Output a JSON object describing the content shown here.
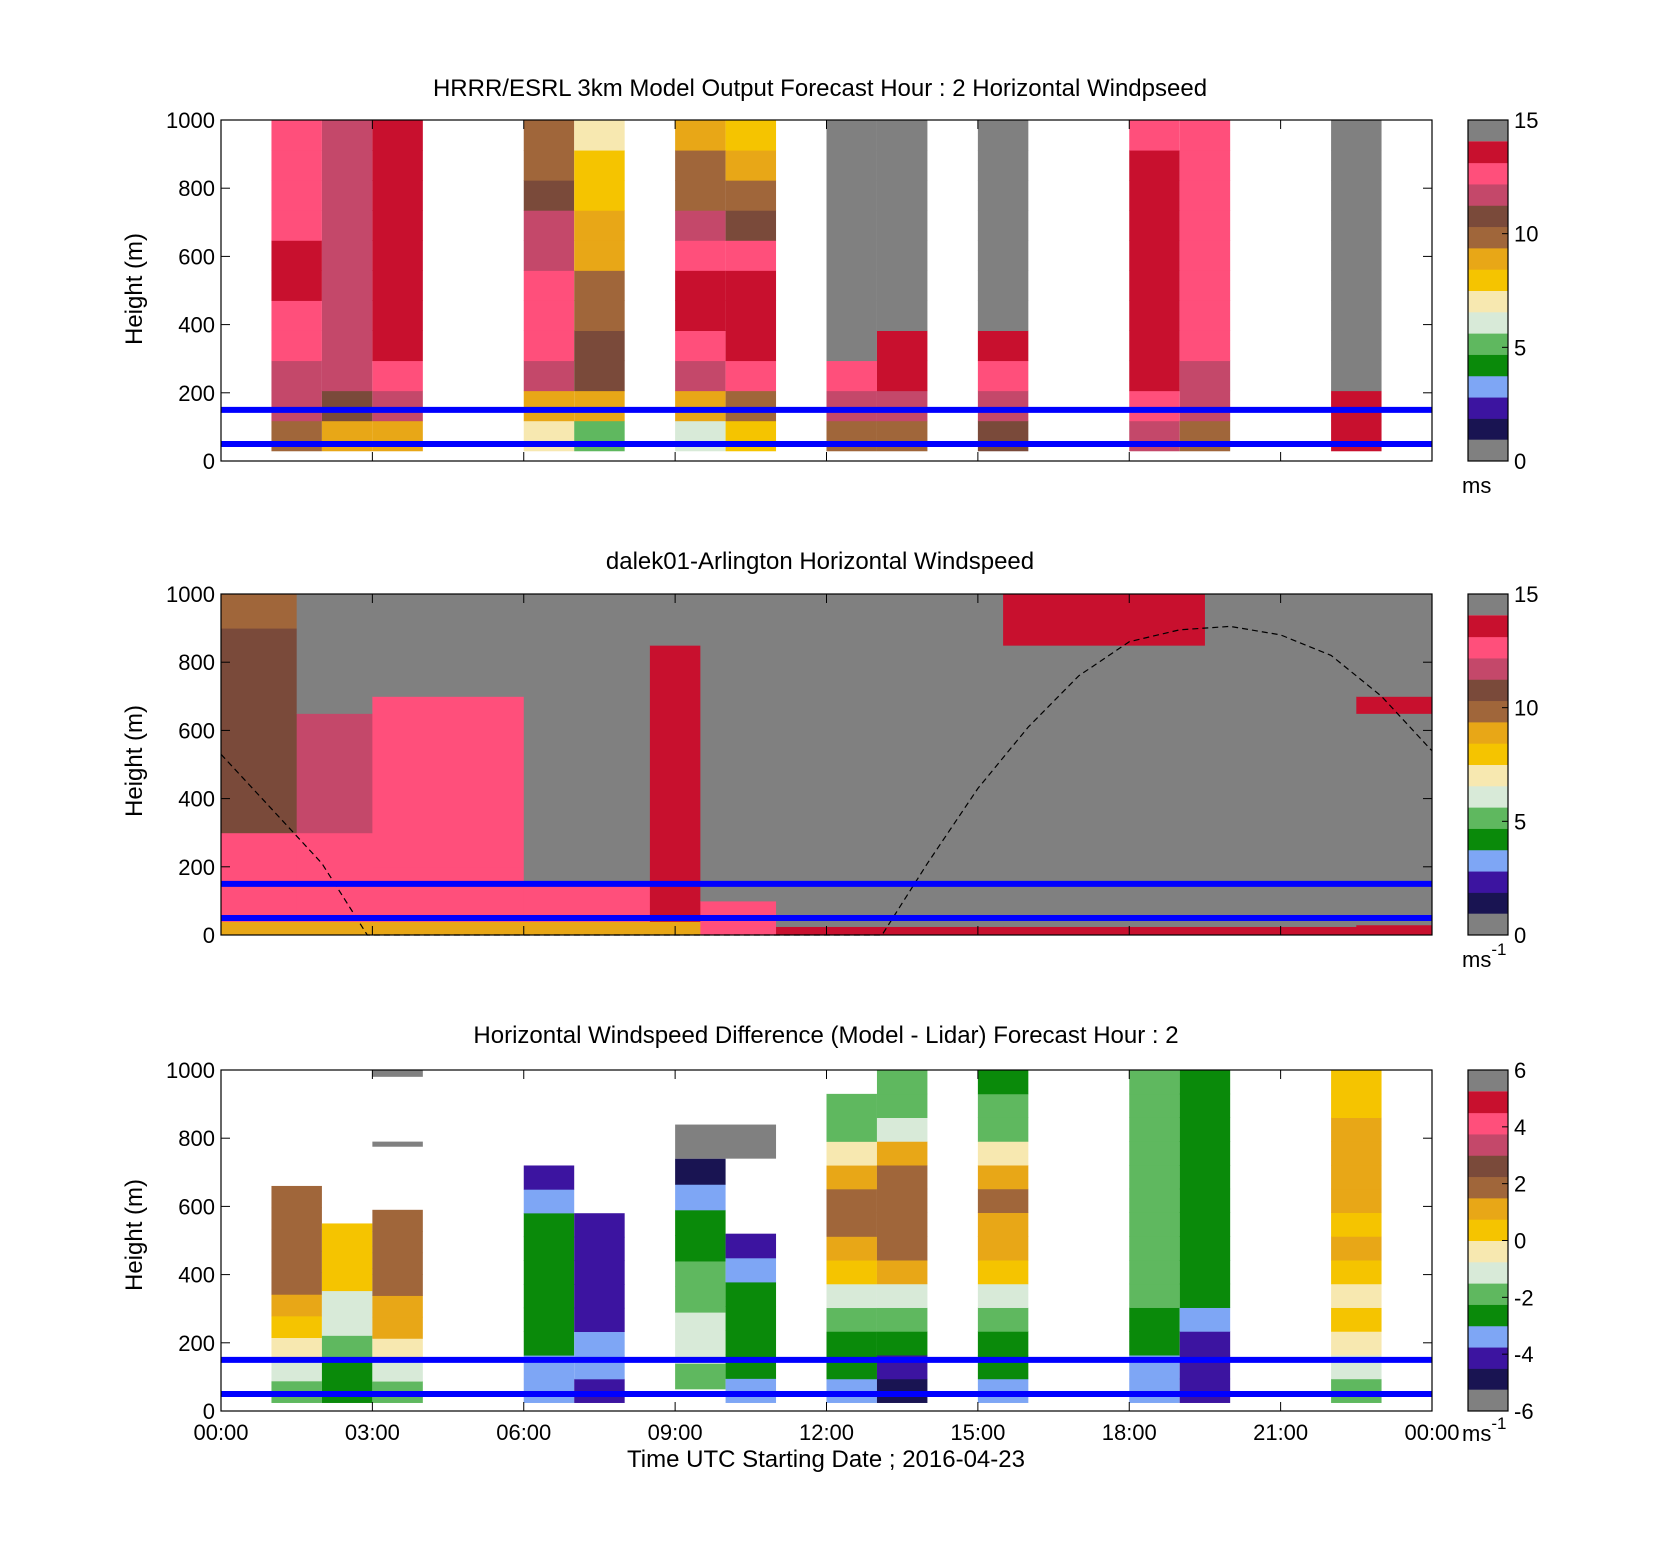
{
  "xlabel": "Time UTC  Starting Date ; 2016-04-23",
  "x_ticks": [
    "00:00",
    "03:00",
    "06:00",
    "09:00",
    "12:00",
    "15:00",
    "18:00",
    "21:00",
    "00:00"
  ],
  "ylabel": "Height (m)",
  "colors": {
    "missing": "#808080",
    "overlay_lines": "#0000ff",
    "speed_colormap": [
      "#191452",
      "#3c14a0",
      "#7ea6f5",
      "#0a8a0a",
      "#5fb85f",
      "#d8ead8",
      "#f7e8b0",
      "#f5c400",
      "#e8a717",
      "#a0663a",
      "#7a4a3a",
      "#c4486a",
      "#ff4f7b",
      "#c8102e"
    ],
    "diff_colormap": [
      "#191452",
      "#3c14a0",
      "#7ea6f5",
      "#0a8a0a",
      "#5fb85f",
      "#d8ead8",
      "#f7e8b0",
      "#f5c400",
      "#e8a717",
      "#a0663a",
      "#7a4a3a",
      "#c4486a",
      "#ff4f7b",
      "#c8102e"
    ]
  },
  "chart_data": [
    {
      "type": "heatmap",
      "title": "HRRR/ESRL 3km Model Output   Forecast Hour : 2 Horizontal Windpseed",
      "xlabel": "",
      "ylabel": "Height (m)",
      "xlim": [
        0,
        24
      ],
      "ylim": [
        0,
        1000
      ],
      "y_ticks": [
        "0",
        "200",
        "400",
        "600",
        "800",
        "1000"
      ],
      "colorbar": {
        "min": 0,
        "max": 15,
        "ticks": [
          "0",
          "5",
          "10",
          "15"
        ],
        "unit": "ms"
      },
      "overlay_heights_m": [
        50,
        150
      ],
      "columns": [
        {
          "t0": 1.0,
          "t1": 2.0,
          "base": 30,
          "top": 1000,
          "values": [
            10,
            12,
            12,
            13,
            13.5,
            14,
            14,
            13.5,
            13.5,
            13.5,
            13.5
          ]
        },
        {
          "t0": 2.0,
          "t1": 3.0,
          "base": 30,
          "top": 1000,
          "values": [
            9.5,
            11,
            12,
            12.5,
            12.5,
            12.5,
            12.5,
            12.5,
            12.5,
            12.5,
            12.5
          ]
        },
        {
          "t0": 3.0,
          "t1": 4.0,
          "base": 30,
          "top": 1000,
          "values": [
            9,
            12,
            13,
            14,
            15,
            15,
            15,
            15,
            14.5,
            14,
            14
          ]
        },
        {
          "t0": 6.0,
          "t1": 7.0,
          "base": 30,
          "top": 1000,
          "values": [
            7,
            9,
            12.5,
            13,
            13.5,
            13,
            12,
            12,
            11,
            10.5,
            10
          ]
        },
        {
          "t0": 7.0,
          "t1": 8.0,
          "base": 30,
          "top": 1000,
          "values": [
            5,
            9,
            11,
            11,
            10.5,
            10,
            9.5,
            9,
            8,
            7.5,
            7
          ]
        },
        {
          "t0": 9.0,
          "t1": 10.0,
          "base": 30,
          "top": 1000,
          "values": [
            6,
            9.5,
            12.5,
            13.5,
            14,
            14,
            13,
            12,
            10.5,
            10,
            9
          ]
        },
        {
          "t0": 10.0,
          "t1": 11.0,
          "base": 30,
          "top": 1000,
          "values": [
            8,
            10,
            13,
            14.5,
            14.5,
            14,
            13.5,
            11,
            10,
            9.5,
            8
          ]
        },
        {
          "t0": 12.0,
          "t1": 13.0,
          "base": 30,
          "top": 1000,
          "values": [
            10,
            12,
            13.5,
            null,
            null,
            null,
            null,
            null,
            null,
            null,
            null
          ]
        },
        {
          "t0": 13.0,
          "t1": 14.0,
          "base": 30,
          "top": 1000,
          "values": [
            10,
            12,
            14,
            15,
            null,
            null,
            null,
            null,
            null,
            null,
            null
          ]
        },
        {
          "t0": 15.0,
          "t1": 16.0,
          "base": 30,
          "top": 1000,
          "values": [
            11,
            12,
            13.5,
            14.5,
            null,
            null,
            null,
            null,
            null,
            null,
            null
          ]
        },
        {
          "t0": 18.0,
          "t1": 19.0,
          "base": 30,
          "top": 1000,
          "values": [
            12,
            13,
            14,
            14.5,
            14.5,
            15,
            15,
            15,
            14.5,
            14,
            13.5
          ]
        },
        {
          "t0": 19.0,
          "t1": 20.0,
          "base": 30,
          "top": 1000,
          "values": [
            10,
            12,
            12.5,
            13,
            13.5,
            13.5,
            13.5,
            13.5,
            13.5,
            13.5,
            13
          ]
        },
        {
          "t0": 22.0,
          "t1": 23.0,
          "base": 30,
          "top": 1000,
          "values": [
            14,
            15,
            null,
            null,
            null,
            null,
            null,
            null,
            null,
            null,
            null
          ]
        }
      ]
    },
    {
      "type": "heatmap",
      "title": "dalek01-Arlington  Horizontal Windspeed",
      "xlabel": "",
      "ylabel": "Height (m)",
      "xlim": [
        0,
        24
      ],
      "ylim": [
        0,
        1000
      ],
      "y_ticks": [
        "0",
        "200",
        "400",
        "600",
        "800",
        "1000"
      ],
      "colorbar": {
        "min": 0,
        "max": 15,
        "ticks": [
          "0",
          "5",
          "10",
          "15"
        ],
        "unit": "ms",
        "unit_exponent": "-1"
      },
      "overlay_heights_m": [
        50,
        150
      ],
      "mixing_layer_curve": [
        [
          0,
          530
        ],
        [
          1,
          370
        ],
        [
          2,
          210
        ],
        [
          2.9,
          0
        ],
        [
          13.1,
          0
        ],
        [
          14,
          210
        ],
        [
          15,
          430
        ],
        [
          16,
          610
        ],
        [
          17,
          760
        ],
        [
          18,
          860
        ],
        [
          19,
          895
        ],
        [
          20,
          905
        ],
        [
          21,
          880
        ],
        [
          22,
          820
        ],
        [
          23,
          700
        ],
        [
          24,
          540
        ]
      ],
      "regions": [
        {
          "t0": 0.0,
          "t1": 1.5,
          "layers": [
            [
              0,
              40,
              9
            ],
            [
              40,
              300,
              13.5
            ],
            [
              300,
              900,
              11.5
            ],
            [
              900,
              1000,
              10
            ]
          ]
        },
        {
          "t0": 1.5,
          "t1": 3.0,
          "layers": [
            [
              0,
              40,
              9
            ],
            [
              40,
              300,
              13.5
            ],
            [
              300,
              650,
              12
            ],
            [
              650,
              1000,
              null
            ]
          ]
        },
        {
          "t0": 3.0,
          "t1": 6.0,
          "layers": [
            [
              0,
              40,
              9
            ],
            [
              40,
              200,
              13.5
            ],
            [
              200,
              700,
              13.5
            ],
            [
              700,
              1000,
              null
            ]
          ]
        },
        {
          "t0": 6.0,
          "t1": 8.5,
          "layers": [
            [
              0,
              40,
              9.5
            ],
            [
              40,
              150,
              13.5
            ],
            [
              150,
              1000,
              null
            ]
          ]
        },
        {
          "t0": 8.5,
          "t1": 9.5,
          "layers": [
            [
              0,
              40,
              9
            ],
            [
              40,
              850,
              14
            ],
            [
              850,
              1000,
              null
            ]
          ]
        },
        {
          "t0": 9.5,
          "t1": 11.0,
          "layers": [
            [
              0,
              100,
              13.5
            ],
            [
              100,
              1000,
              null
            ]
          ]
        },
        {
          "t0": 11.0,
          "t1": 15.5,
          "layers": [
            [
              0,
              25,
              14.5
            ],
            [
              25,
              1000,
              null
            ]
          ]
        },
        {
          "t0": 15.5,
          "t1": 19.5,
          "layers": [
            [
              0,
              25,
              14
            ],
            [
              25,
              850,
              null
            ],
            [
              850,
              1000,
              14
            ]
          ]
        },
        {
          "t0": 19.5,
          "t1": 22.5,
          "layers": [
            [
              0,
              25,
              14
            ],
            [
              25,
              1000,
              null
            ]
          ]
        },
        {
          "t0": 22.5,
          "t1": 24.0,
          "layers": [
            [
              0,
              30,
              14
            ],
            [
              30,
              650,
              null
            ],
            [
              650,
              700,
              15
            ],
            [
              700,
              1000,
              null
            ]
          ]
        }
      ]
    },
    {
      "type": "heatmap",
      "title": "Horizontal Windspeed Difference (Model - Lidar) Forecast Hour : 2",
      "xlabel": "Time UTC  Starting Date ; 2016-04-23",
      "ylabel": "Height (m)",
      "xlim": [
        0,
        24
      ],
      "ylim": [
        0,
        1000
      ],
      "y_ticks": [
        "0",
        "200",
        "400",
        "600",
        "800",
        "1000"
      ],
      "colorbar": {
        "min": -6,
        "max": 6,
        "ticks": [
          "-6",
          "-4",
          "-2",
          "0",
          "2",
          "4",
          "6"
        ],
        "unit": "ms",
        "unit_exponent": "-1"
      },
      "overlay_heights_m": [
        50,
        150
      ],
      "columns": [
        {
          "t0": 1.0,
          "t1": 2.0,
          "base": 25,
          "top": 660,
          "values": [
            -2,
            -1.5,
            -0.5,
            0.5,
            1.5,
            2,
            2.5,
            2.5,
            2.5,
            2.5
          ]
        },
        {
          "t0": 2.0,
          "t1": 3.0,
          "base": 25,
          "top": 550,
          "values": [
            -3,
            -3,
            -2,
            -1.5,
            -1,
            0,
            0.5,
            0.5
          ]
        },
        {
          "t0": 3.0,
          "t1": 4.0,
          "base": 25,
          "top": 590,
          "values": [
            -2,
            -1.5,
            -0.5,
            1,
            1.5,
            2,
            2,
            2,
            2
          ]
        },
        {
          "t0": 6.0,
          "t1": 7.0,
          "base": 25,
          "top": 720,
          "values": [
            -4,
            -3.5,
            -3,
            -3,
            -3,
            -3,
            -3,
            -3,
            -3.5,
            -5
          ]
        },
        {
          "t0": 7.0,
          "t1": 8.0,
          "base": 25,
          "top": 580,
          "values": [
            -5,
            -4,
            -4,
            -4.5,
            -5,
            -5,
            -5,
            -5
          ]
        },
        {
          "t0": 9.0,
          "t1": 10.0,
          "base": 65,
          "top": 740,
          "values": [
            -2,
            -1,
            -1.5,
            -2,
            -2.5,
            -3,
            -3,
            -4,
            -5.5
          ]
        },
        {
          "t0": 10.0,
          "t1": 11.0,
          "base": 25,
          "top": 520,
          "values": [
            -3.5,
            -3,
            -3,
            -3,
            -3,
            -4,
            -4.5
          ]
        },
        {
          "t0": 12.0,
          "t1": 13.0,
          "base": 25,
          "top": 930,
          "values": [
            -4,
            -3,
            -3,
            -2,
            -1,
            0.5,
            1.5,
            2,
            2.5,
            1.5,
            -0.5,
            -2,
            -2.5
          ]
        },
        {
          "t0": 13.0,
          "t1": 14.0,
          "base": 25,
          "top": 1000,
          "values": [
            -5.5,
            -4.5,
            -3,
            -2,
            -1,
            1,
            2,
            2.5,
            2.5,
            2,
            1,
            -1.5,
            -2.5,
            -2.5
          ]
        },
        {
          "t0": 15.0,
          "t1": 16.0,
          "base": 25,
          "top": 1000,
          "values": [
            -4,
            -3,
            -3,
            -2,
            -1,
            0,
            1,
            1.5,
            2,
            1.5,
            -0.5,
            -2,
            -2.5,
            -3
          ]
        },
        {
          "t0": 18.0,
          "t1": 19.0,
          "base": 25,
          "top": 1000,
          "values": [
            -4,
            -3.5,
            -3,
            -3,
            -2.5,
            -2.5,
            -2.5,
            -2.5,
            -2.5,
            -2.5,
            -2.5,
            -2.5,
            -2.5,
            -2
          ]
        },
        {
          "t0": 19.0,
          "t1": 20.0,
          "base": 25,
          "top": 1000,
          "values": [
            -5,
            -5,
            -4.5,
            -4,
            -3,
            -3,
            -3,
            -3,
            -3,
            -3,
            -3,
            -3,
            -3,
            -3
          ]
        },
        {
          "t0": 22.0,
          "t1": 23.0,
          "base": 25,
          "top": 1000,
          "values": [
            -2,
            -1,
            -0.5,
            0.5,
            -0.5,
            0.5,
            1,
            0.5,
            1,
            1.5,
            1.5,
            1,
            0.5,
            0.5
          ]
        }
      ],
      "missing_blocks": [
        {
          "t0": 3.0,
          "t1": 4.0,
          "h0": 980,
          "h1": 1000
        },
        {
          "t0": 3.0,
          "t1": 4.0,
          "h0": 775,
          "h1": 790
        },
        {
          "t0": 9.0,
          "t1": 11.0,
          "h0": 740,
          "h1": 840
        }
      ]
    }
  ]
}
